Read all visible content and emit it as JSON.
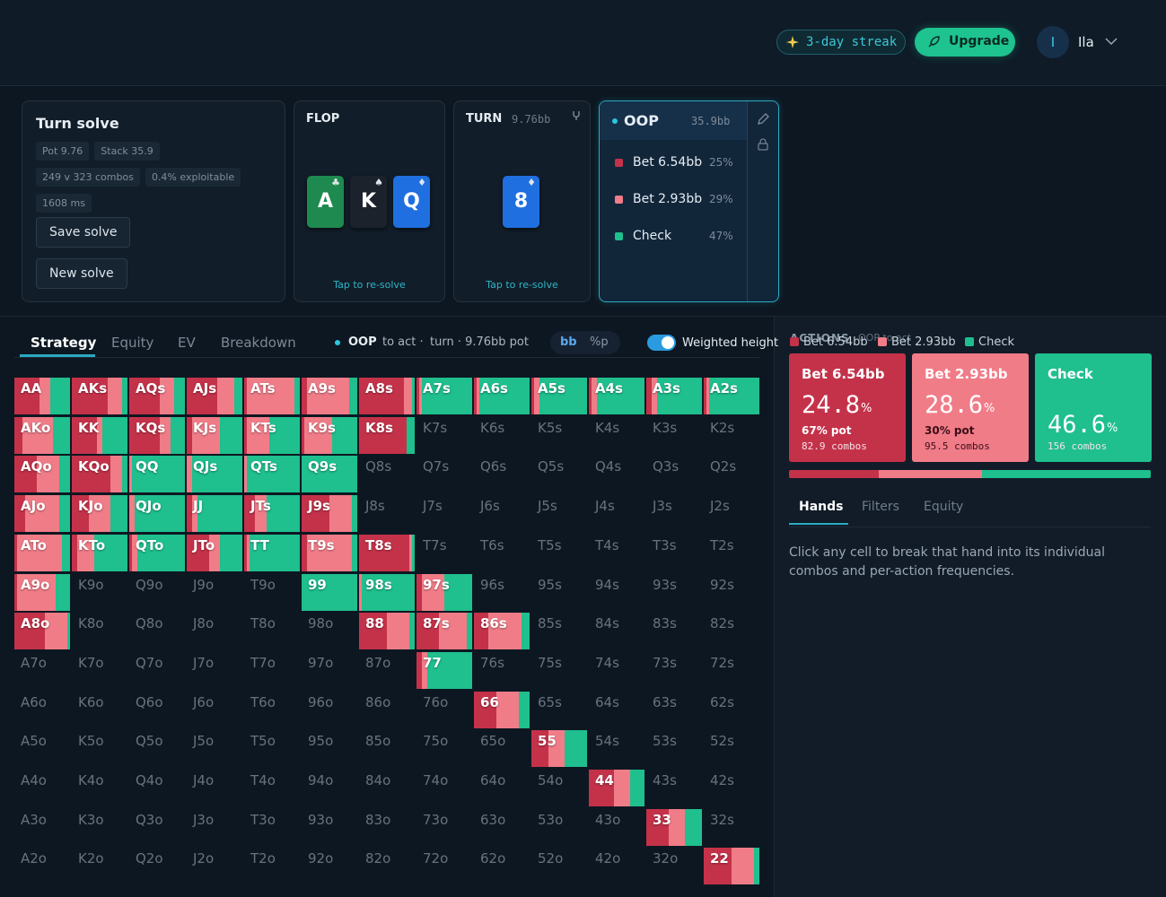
{
  "header": {
    "streak": "3-day streak",
    "upgrade": "Upgrade",
    "avatar": "I",
    "user": "Ila"
  },
  "solve": {
    "title": "Turn solve",
    "tags": [
      "Pot 9.76",
      "Stack 35.9",
      "249 v 323 combos",
      "0.4% exploitable",
      "1608 ms"
    ],
    "buttons": [
      "Save solve",
      "New solve"
    ]
  },
  "flop": {
    "label": "FLOP",
    "cards": [
      {
        "rank": "A",
        "suit": "♣",
        "color": "#1f8a4f"
      },
      {
        "rank": "K",
        "suit": "♠",
        "color": "#1c222b"
      },
      {
        "rank": "Q",
        "suit": "♦",
        "color": "#1f6fe0"
      }
    ],
    "link": "Tap to re-solve"
  },
  "turn": {
    "label": "TURN",
    "pot": "9.76bb",
    "cards": [
      {
        "rank": "8",
        "suit": "♦",
        "color": "#1f6fe0"
      }
    ],
    "link": "Tap to re-solve"
  },
  "player": {
    "name": "OOP",
    "stack": "35.9bb",
    "actions": [
      {
        "name": "Bet 6.54bb",
        "pct": "25%",
        "color": "#c4324a"
      },
      {
        "name": "Bet 2.93bb",
        "pct": "29%",
        "color": "#f07c88"
      },
      {
        "name": "Check",
        "pct": "47%",
        "color": "#1fbf8e"
      }
    ]
  },
  "toolbar": {
    "tabs": [
      "Strategy",
      "Equity",
      "EV",
      "Breakdown"
    ],
    "actor": "OOP",
    "status": "to act ·",
    "street": "turn · 9.76bb pot",
    "units": [
      "bb",
      "%p"
    ],
    "toggle": "Weighted height"
  },
  "grid": {
    "rows": [
      [
        {
          "label": "AA",
          "mix": [
            45,
            20,
            35
          ]
        },
        {
          "label": "AKs",
          "mix": [
            65,
            25,
            10
          ]
        },
        {
          "label": "AQs",
          "mix": [
            55,
            25,
            20
          ]
        },
        {
          "label": "AJs",
          "mix": [
            55,
            30,
            15
          ]
        },
        {
          "label": "ATs",
          "mix": [
            5,
            85,
            10
          ]
        },
        {
          "label": "A9s",
          "mix": [
            10,
            75,
            15
          ]
        },
        {
          "label": "A8s",
          "mix": [
            80,
            15,
            5
          ]
        },
        {
          "label": "A7s",
          "mix": [
            5,
            5,
            90
          ]
        },
        {
          "label": "A6s",
          "mix": [
            5,
            5,
            90
          ]
        },
        {
          "label": "A5s",
          "mix": [
            5,
            10,
            85
          ]
        },
        {
          "label": "A4s",
          "mix": [
            5,
            10,
            85
          ]
        },
        {
          "label": "A3s",
          "mix": [
            10,
            10,
            80
          ]
        },
        {
          "label": "A2s",
          "mix": [
            5,
            5,
            90
          ]
        }
      ],
      [
        {
          "label": "AKo",
          "mix": [
            15,
            55,
            30
          ]
        },
        {
          "label": "KK",
          "mix": [
            45,
            10,
            45
          ]
        },
        {
          "label": "KQs",
          "mix": [
            55,
            20,
            25
          ]
        },
        {
          "label": "KJs",
          "mix": [
            10,
            50,
            40
          ]
        },
        {
          "label": "KTs",
          "mix": [
            5,
            40,
            55
          ]
        },
        {
          "label": "K9s",
          "mix": [
            5,
            50,
            45
          ]
        },
        {
          "label": "K8s",
          "mix": [
            85,
            0,
            15
          ]
        },
        {
          "label": "K7s"
        },
        {
          "label": "K6s"
        },
        {
          "label": "K5s"
        },
        {
          "label": "K4s"
        },
        {
          "label": "K3s"
        },
        {
          "label": "K2s"
        }
      ],
      [
        {
          "label": "AQo",
          "mix": [
            40,
            40,
            20
          ]
        },
        {
          "label": "KQo",
          "mix": [
            70,
            20,
            10
          ]
        },
        {
          "label": "QQ",
          "mix": [
            0,
            5,
            95
          ]
        },
        {
          "label": "QJs",
          "mix": [
            0,
            10,
            90
          ]
        },
        {
          "label": "QTs",
          "mix": [
            0,
            5,
            95
          ]
        },
        {
          "label": "Q9s",
          "mix": [
            0,
            0,
            100
          ]
        },
        {
          "label": "Q8s"
        },
        {
          "label": "Q7s"
        },
        {
          "label": "Q6s"
        },
        {
          "label": "Q5s"
        },
        {
          "label": "Q4s"
        },
        {
          "label": "Q3s"
        },
        {
          "label": "Q2s"
        }
      ],
      [
        {
          "label": "AJo",
          "mix": [
            20,
            60,
            20
          ]
        },
        {
          "label": "KJo",
          "mix": [
            30,
            40,
            30
          ]
        },
        {
          "label": "QJo",
          "mix": [
            0,
            10,
            90
          ]
        },
        {
          "label": "JJ",
          "mix": [
            10,
            10,
            80
          ]
        },
        {
          "label": "JTs",
          "mix": [
            20,
            20,
            60
          ]
        },
        {
          "label": "J9s",
          "mix": [
            50,
            40,
            10
          ]
        },
        {
          "label": "J8s"
        },
        {
          "label": "J7s"
        },
        {
          "label": "J6s"
        },
        {
          "label": "J5s"
        },
        {
          "label": "J4s"
        },
        {
          "label": "J3s"
        },
        {
          "label": "J2s"
        }
      ],
      [
        {
          "label": "ATo",
          "mix": [
            5,
            80,
            15
          ]
        },
        {
          "label": "KTo",
          "mix": [
            10,
            30,
            60
          ]
        },
        {
          "label": "QTo",
          "mix": [
            5,
            10,
            85
          ]
        },
        {
          "label": "JTo",
          "mix": [
            40,
            20,
            40
          ]
        },
        {
          "label": "TT",
          "mix": [
            5,
            5,
            90
          ]
        },
        {
          "label": "T9s",
          "mix": [
            10,
            80,
            10
          ]
        },
        {
          "label": "T8s",
          "mix": [
            90,
            5,
            5
          ]
        },
        {
          "label": "T7s"
        },
        {
          "label": "T6s"
        },
        {
          "label": "T5s"
        },
        {
          "label": "T4s"
        },
        {
          "label": "T3s"
        },
        {
          "label": "T2s"
        }
      ],
      [
        {
          "label": "A9o",
          "mix": [
            5,
            70,
            25
          ]
        },
        {
          "label": "K9o"
        },
        {
          "label": "Q9o"
        },
        {
          "label": "J9o"
        },
        {
          "label": "T9o"
        },
        {
          "label": "99",
          "mix": [
            0,
            0,
            100
          ]
        },
        {
          "label": "98s",
          "mix": [
            0,
            5,
            95
          ]
        },
        {
          "label": "97s",
          "mix": [
            10,
            40,
            50
          ]
        },
        {
          "label": "96s"
        },
        {
          "label": "95s"
        },
        {
          "label": "94s"
        },
        {
          "label": "93s"
        },
        {
          "label": "92s"
        }
      ],
      [
        {
          "label": "A8o",
          "mix": [
            55,
            40,
            5
          ]
        },
        {
          "label": "K8o"
        },
        {
          "label": "Q8o"
        },
        {
          "label": "J8o"
        },
        {
          "label": "T8o"
        },
        {
          "label": "98o"
        },
        {
          "label": "88",
          "mix": [
            50,
            40,
            10
          ]
        },
        {
          "label": "87s",
          "mix": [
            40,
            50,
            10
          ]
        },
        {
          "label": "86s",
          "mix": [
            25,
            60,
            15
          ]
        },
        {
          "label": "85s"
        },
        {
          "label": "84s"
        },
        {
          "label": "83s"
        },
        {
          "label": "82s"
        }
      ],
      [
        {
          "label": "A7o"
        },
        {
          "label": "K7o"
        },
        {
          "label": "Q7o"
        },
        {
          "label": "J7o"
        },
        {
          "label": "T7o"
        },
        {
          "label": "97o"
        },
        {
          "label": "87o"
        },
        {
          "label": "77",
          "mix": [
            10,
            10,
            80
          ]
        },
        {
          "label": "76s"
        },
        {
          "label": "75s"
        },
        {
          "label": "74s"
        },
        {
          "label": "73s"
        },
        {
          "label": "72s"
        }
      ],
      [
        {
          "label": "A6o"
        },
        {
          "label": "K6o"
        },
        {
          "label": "Q6o"
        },
        {
          "label": "J6o"
        },
        {
          "label": "T6o"
        },
        {
          "label": "96o"
        },
        {
          "label": "86o"
        },
        {
          "label": "76o"
        },
        {
          "label": "66",
          "mix": [
            40,
            40,
            20
          ]
        },
        {
          "label": "65s"
        },
        {
          "label": "64s"
        },
        {
          "label": "63s"
        },
        {
          "label": "62s"
        }
      ],
      [
        {
          "label": "A5o"
        },
        {
          "label": "K5o"
        },
        {
          "label": "Q5o"
        },
        {
          "label": "J5o"
        },
        {
          "label": "T5o"
        },
        {
          "label": "95o"
        },
        {
          "label": "85o"
        },
        {
          "label": "75o"
        },
        {
          "label": "65o"
        },
        {
          "label": "55",
          "mix": [
            30,
            30,
            40
          ]
        },
        {
          "label": "54s"
        },
        {
          "label": "53s"
        },
        {
          "label": "52s"
        }
      ],
      [
        {
          "label": "A4o"
        },
        {
          "label": "K4o"
        },
        {
          "label": "Q4o"
        },
        {
          "label": "J4o"
        },
        {
          "label": "T4o"
        },
        {
          "label": "94o"
        },
        {
          "label": "84o"
        },
        {
          "label": "74o"
        },
        {
          "label": "64o"
        },
        {
          "label": "54o"
        },
        {
          "label": "44",
          "mix": [
            45,
            30,
            25
          ]
        },
        {
          "label": "43s"
        },
        {
          "label": "42s"
        }
      ],
      [
        {
          "label": "A3o"
        },
        {
          "label": "K3o"
        },
        {
          "label": "Q3o"
        },
        {
          "label": "J3o"
        },
        {
          "label": "T3o"
        },
        {
          "label": "93o"
        },
        {
          "label": "83o"
        },
        {
          "label": "73o"
        },
        {
          "label": "63o"
        },
        {
          "label": "53o"
        },
        {
          "label": "43o"
        },
        {
          "label": "33",
          "mix": [
            40,
            30,
            30
          ]
        },
        {
          "label": "32s"
        }
      ],
      [
        {
          "label": "A2o"
        },
        {
          "label": "K2o"
        },
        {
          "label": "Q2o"
        },
        {
          "label": "J2o"
        },
        {
          "label": "T2o"
        },
        {
          "label": "92o"
        },
        {
          "label": "82o"
        },
        {
          "label": "72o"
        },
        {
          "label": "62o"
        },
        {
          "label": "52o"
        },
        {
          "label": "42o"
        },
        {
          "label": "32o"
        },
        {
          "label": "22",
          "mix": [
            50,
            40,
            10
          ]
        }
      ]
    ]
  },
  "panel": {
    "title": "ACTIONS",
    "subtitle": "OOP to act",
    "freq_unit": "%",
    "cards": [
      {
        "freq": 24.8,
        "pot": "67% pot",
        "combos": "82.9 combos"
      },
      {
        "freq": 28.6,
        "pot": "30% pot",
        "combos": "95.5 combos"
      },
      {
        "freq": 46.6,
        "combos": "156 combos"
      }
    ],
    "tabs": [
      "Hands",
      "Filters",
      "Equity"
    ],
    "help": "Click any cell to break that hand into its individual combos and per-action frequencies."
  }
}
